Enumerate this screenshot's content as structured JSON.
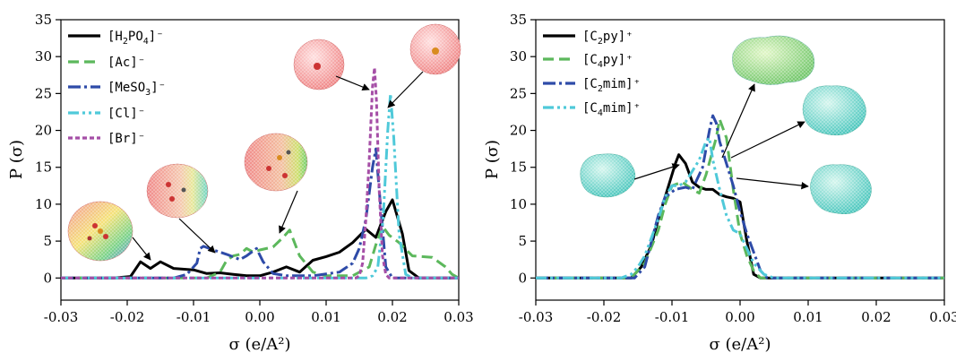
{
  "chart_data": [
    {
      "type": "line",
      "xlabel": "σ (e/A²)",
      "ylabel": "P (σ)",
      "xlim": [
        -0.03,
        0.03
      ],
      "ylim": [
        -3,
        35
      ],
      "xticks": [
        "-0.03",
        "-0.02",
        "-0.01",
        "0.00",
        "0.01",
        "0.02",
        "0.03"
      ],
      "yticks": [
        "0",
        "5",
        "10",
        "15",
        "20",
        "25",
        "30",
        "35"
      ],
      "legend_position": "top-left",
      "series": [
        {
          "name": "[H2PO4]⁻",
          "label_main": "[H",
          "label_sub1": "2",
          "label_mid": "PO",
          "label_sub2": "4",
          "label_end": "]⁻",
          "color": "#000000",
          "dash": "",
          "points": [
            [
              -0.03,
              0
            ],
            [
              -0.022,
              0
            ],
            [
              -0.0195,
              0.2
            ],
            [
              -0.018,
              2.2
            ],
            [
              -0.0165,
              1.3
            ],
            [
              -0.015,
              2.2
            ],
            [
              -0.013,
              1.3
            ],
            [
              -0.01,
              1.1
            ],
            [
              -0.008,
              0.6
            ],
            [
              -0.006,
              0.7
            ],
            [
              -0.004,
              0.5
            ],
            [
              -0.002,
              0.3
            ],
            [
              0.0,
              0.3
            ],
            [
              0.002,
              0.8
            ],
            [
              0.004,
              1.5
            ],
            [
              0.006,
              0.8
            ],
            [
              0.008,
              2.4
            ],
            [
              0.01,
              2.9
            ],
            [
              0.012,
              3.5
            ],
            [
              0.014,
              4.8
            ],
            [
              0.016,
              6.6
            ],
            [
              0.0175,
              5.5
            ],
            [
              0.019,
              9.0
            ],
            [
              0.02,
              10.6
            ],
            [
              0.0215,
              6.0
            ],
            [
              0.0225,
              1.0
            ],
            [
              0.024,
              0
            ],
            [
              0.03,
              0
            ]
          ]
        },
        {
          "name": "[Ac]⁻",
          "label_main": "[Ac]⁻",
          "color": "#5cb85c",
          "dash": "12,6",
          "points": [
            [
              -0.03,
              0
            ],
            [
              -0.008,
              0
            ],
            [
              -0.006,
              0.8
            ],
            [
              -0.005,
              2.4
            ],
            [
              -0.004,
              3.0
            ],
            [
              -0.003,
              3.2
            ],
            [
              -0.002,
              4.0
            ],
            [
              -0.001,
              3.5
            ],
            [
              0.0,
              3.8
            ],
            [
              0.002,
              4.2
            ],
            [
              0.0035,
              5.5
            ],
            [
              0.0045,
              6.5
            ],
            [
              0.006,
              3.0
            ],
            [
              0.008,
              0.8
            ],
            [
              0.01,
              0.3
            ],
            [
              0.014,
              0.3
            ],
            [
              0.0165,
              1.5
            ],
            [
              0.0175,
              4.5
            ],
            [
              0.0185,
              7.0
            ],
            [
              0.0195,
              5.8
            ],
            [
              0.021,
              4.8
            ],
            [
              0.023,
              3.0
            ],
            [
              0.026,
              2.8
            ],
            [
              0.028,
              1.5
            ],
            [
              0.029,
              0.5
            ],
            [
              0.03,
              0
            ]
          ]
        },
        {
          "name": "[MeSO3]⁻",
          "label_main": "[MeSO",
          "label_sub1": "3",
          "label_end": "]⁻",
          "color": "#2e4ba8",
          "dash": "14,4,3,4",
          "points": [
            [
              -0.03,
              0
            ],
            [
              -0.013,
              0
            ],
            [
              -0.011,
              0.5
            ],
            [
              -0.0095,
              2.0
            ],
            [
              -0.009,
              4.0
            ],
            [
              -0.0085,
              4.3
            ],
            [
              -0.007,
              3.8
            ],
            [
              -0.005,
              3.2
            ],
            [
              -0.003,
              2.5
            ],
            [
              -0.002,
              3.0
            ],
            [
              -0.0005,
              4.0
            ],
            [
              0.0005,
              2.2
            ],
            [
              0.002,
              0.6
            ],
            [
              0.004,
              0.3
            ],
            [
              0.008,
              0.3
            ],
            [
              0.012,
              0.8
            ],
            [
              0.014,
              2.0
            ],
            [
              0.015,
              4.0
            ],
            [
              0.016,
              8.0
            ],
            [
              0.017,
              15.0
            ],
            [
              0.0175,
              17.5
            ],
            [
              0.018,
              12.0
            ],
            [
              0.019,
              1.5
            ],
            [
              0.02,
              0
            ],
            [
              0.03,
              0
            ]
          ]
        },
        {
          "name": "[Cl]⁻",
          "label_main": "[Cl]⁻",
          "color": "#4fc9d9",
          "dash": "12,4,3,4,3,4",
          "points": [
            [
              -0.03,
              0
            ],
            [
              0.016,
              0
            ],
            [
              0.017,
              0.3
            ],
            [
              0.0178,
              1.5
            ],
            [
              0.0186,
              8.0
            ],
            [
              0.0193,
              20.0
            ],
            [
              0.0197,
              25.0
            ],
            [
              0.0202,
              19.0
            ],
            [
              0.021,
              6.0
            ],
            [
              0.022,
              0.5
            ],
            [
              0.023,
              0
            ],
            [
              0.03,
              0
            ]
          ]
        },
        {
          "name": "[Br]⁻",
          "label_main": "[Br]⁻",
          "color": "#a54ea6",
          "dash": "5,3",
          "points": [
            [
              -0.03,
              0
            ],
            [
              0.0145,
              0
            ],
            [
              0.015,
              0.3
            ],
            [
              0.0155,
              2.0
            ],
            [
              0.016,
              8.0
            ],
            [
              0.0165,
              16.0
            ],
            [
              0.017,
              26.0
            ],
            [
              0.0173,
              28.5
            ],
            [
              0.0176,
              24.0
            ],
            [
              0.018,
              12.0
            ],
            [
              0.0185,
              3.0
            ],
            [
              0.019,
              0.5
            ],
            [
              0.0195,
              0
            ],
            [
              0.03,
              0
            ]
          ]
        }
      ]
    },
    {
      "type": "line",
      "xlabel": "σ (e/A²)",
      "ylabel": "P (σ)",
      "xlim": [
        -0.03,
        0.03
      ],
      "ylim": [
        -3,
        35
      ],
      "xticks": [
        "-0.03",
        "-0.02",
        "-0.01",
        "0.00",
        "0.01",
        "0.02",
        "0.03"
      ],
      "yticks": [
        "0",
        "5",
        "10",
        "15",
        "20",
        "25",
        "30",
        "35"
      ],
      "legend_position": "top-left",
      "series": [
        {
          "name": "[C2py]⁺",
          "label_main": "[C",
          "label_sub1": "2",
          "label_end": "py]⁺",
          "color": "#000000",
          "dash": "",
          "points": [
            [
              -0.03,
              0
            ],
            [
              -0.016,
              0
            ],
            [
              -0.0145,
              1.5
            ],
            [
              -0.013,
              4.5
            ],
            [
              -0.012,
              8.0
            ],
            [
              -0.0105,
              12.5
            ],
            [
              -0.0095,
              15.5
            ],
            [
              -0.009,
              16.7
            ],
            [
              -0.008,
              15.5
            ],
            [
              -0.007,
              13.0
            ],
            [
              -0.006,
              12.3
            ],
            [
              -0.005,
              12.0
            ],
            [
              -0.004,
              12.0
            ],
            [
              -0.003,
              11.3
            ],
            [
              -0.002,
              11.0
            ],
            [
              -0.001,
              10.8
            ],
            [
              0.0,
              10.3
            ],
            [
              0.001,
              5.0
            ],
            [
              0.002,
              0.5
            ],
            [
              0.003,
              0
            ],
            [
              0.03,
              0
            ]
          ]
        },
        {
          "name": "[C4py]⁺",
          "label_main": "[C",
          "label_sub1": "4",
          "label_end": "py]⁺",
          "color": "#5cb85c",
          "dash": "12,6",
          "points": [
            [
              -0.03,
              0
            ],
            [
              -0.016,
              0
            ],
            [
              -0.014,
              2.0
            ],
            [
              -0.012,
              6.5
            ],
            [
              -0.011,
              10.0
            ],
            [
              -0.01,
              12.5
            ],
            [
              -0.0085,
              13.0
            ],
            [
              -0.007,
              12.0
            ],
            [
              -0.006,
              11.5
            ],
            [
              -0.005,
              14.0
            ],
            [
              -0.0035,
              19.0
            ],
            [
              -0.003,
              21.5
            ],
            [
              -0.002,
              19.0
            ],
            [
              -0.001,
              12.0
            ],
            [
              0.0,
              6.0
            ],
            [
              0.001,
              3.0
            ],
            [
              0.002,
              1.0
            ],
            [
              0.003,
              0
            ],
            [
              0.03,
              0
            ]
          ]
        },
        {
          "name": "[C2mim]⁺",
          "label_main": "[C",
          "label_sub1": "2",
          "label_end": "mim]⁺",
          "color": "#2e4ba8",
          "dash": "14,4,3,4",
          "points": [
            [
              -0.03,
              0
            ],
            [
              -0.0155,
              0
            ],
            [
              -0.014,
              1.5
            ],
            [
              -0.013,
              5.0
            ],
            [
              -0.012,
              8.5
            ],
            [
              -0.011,
              11.0
            ],
            [
              -0.0095,
              12.0
            ],
            [
              -0.008,
              12.3
            ],
            [
              -0.007,
              12.0
            ],
            [
              -0.0055,
              15.0
            ],
            [
              -0.0045,
              20.0
            ],
            [
              -0.004,
              22.0
            ],
            [
              -0.0035,
              21.0
            ],
            [
              -0.003,
              18.5
            ],
            [
              -0.002,
              15.5
            ],
            [
              -0.001,
              12.5
            ],
            [
              0.0,
              9.0
            ],
            [
              0.001,
              6.0
            ],
            [
              0.002,
              3.5
            ],
            [
              0.003,
              1.0
            ],
            [
              0.004,
              0
            ],
            [
              0.03,
              0
            ]
          ]
        },
        {
          "name": "[C4mim]⁺",
          "label_main": "[C",
          "label_sub1": "4",
          "label_end": "mim]⁺",
          "color": "#4fc9d9",
          "dash": "12,4,3,4,3,4",
          "points": [
            [
              -0.03,
              0
            ],
            [
              -0.0175,
              0
            ],
            [
              -0.016,
              0.5
            ],
            [
              -0.015,
              1.5
            ],
            [
              -0.014,
              3.0
            ],
            [
              -0.013,
              5.5
            ],
            [
              -0.012,
              8.0
            ],
            [
              -0.011,
              11.0
            ],
            [
              -0.01,
              12.5
            ],
            [
              -0.009,
              12.5
            ],
            [
              -0.008,
              13.0
            ],
            [
              -0.007,
              14.5
            ],
            [
              -0.006,
              16.0
            ],
            [
              -0.005,
              18.5
            ],
            [
              -0.0045,
              19.0
            ],
            [
              -0.004,
              16.0
            ],
            [
              -0.003,
              12.0
            ],
            [
              -0.002,
              8.5
            ],
            [
              -0.001,
              6.5
            ],
            [
              0.0,
              6.0
            ],
            [
              0.001,
              4.0
            ],
            [
              0.002,
              2.0
            ],
            [
              0.0035,
              0.5
            ],
            [
              0.005,
              0
            ],
            [
              0.03,
              0
            ]
          ]
        }
      ]
    }
  ]
}
